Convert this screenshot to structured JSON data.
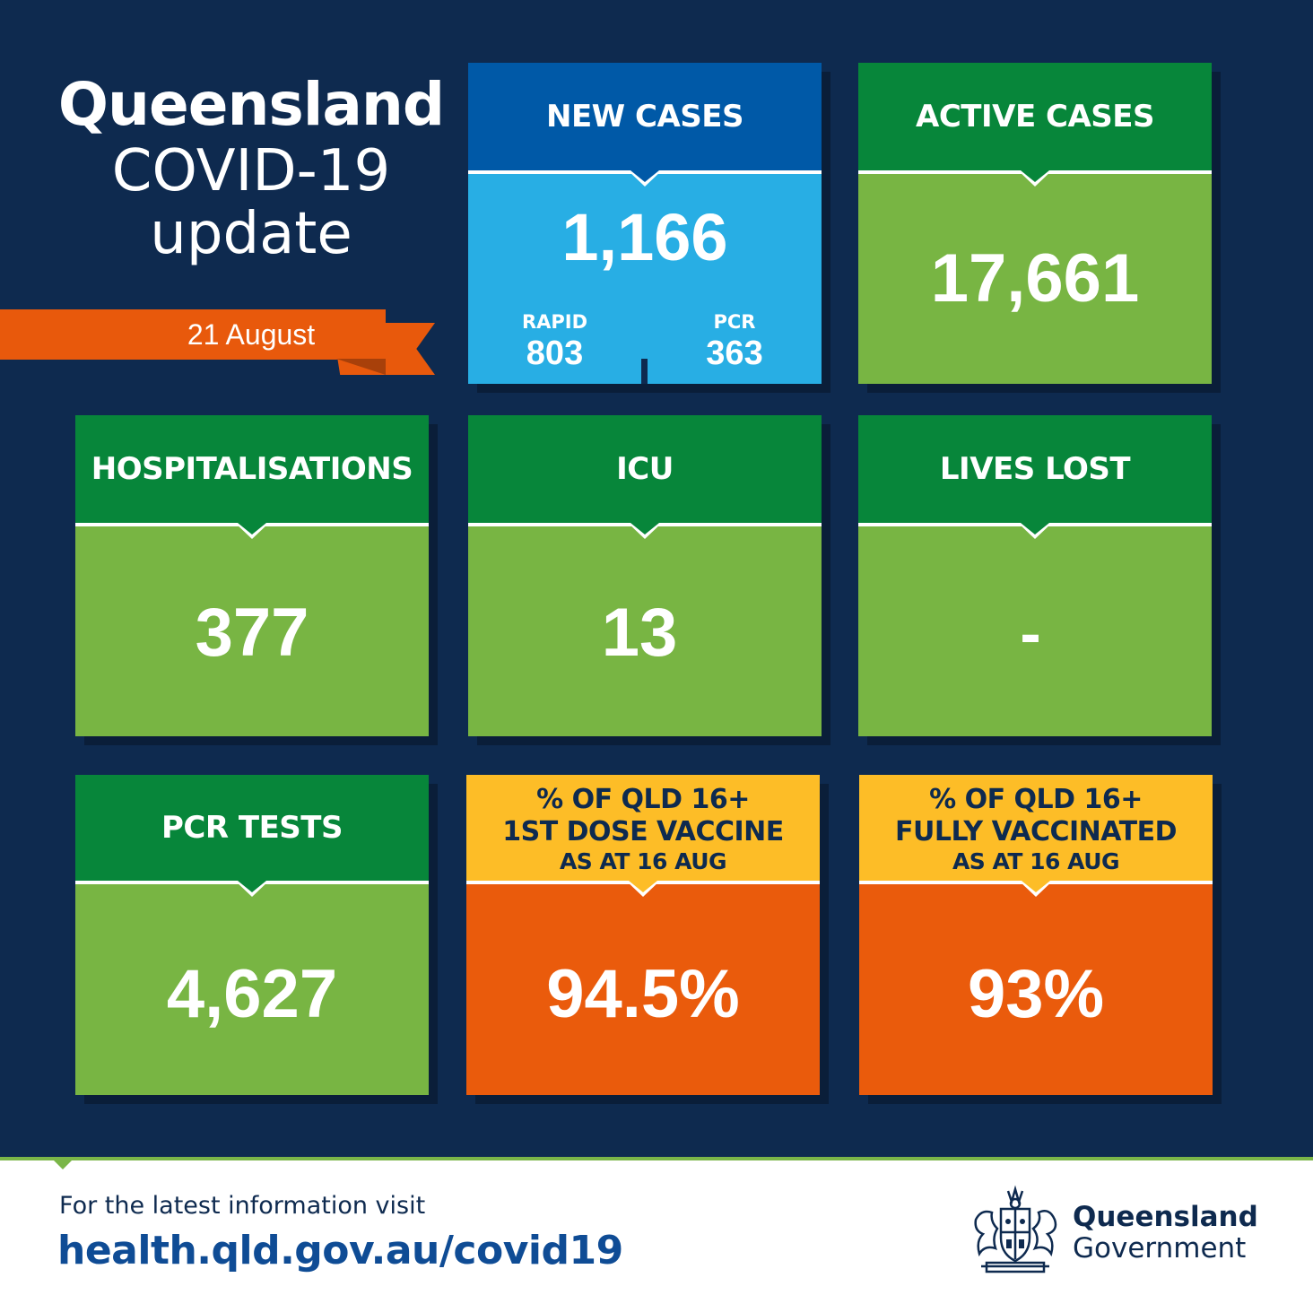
{
  "title": {
    "line1": "Queensland",
    "line2": "COVID-19",
    "line3": "update"
  },
  "date": "21 August",
  "tiles": {
    "new_cases": {
      "label": "NEW CASES",
      "value": "1,166",
      "rapid_label": "RAPID",
      "rapid_value": "803",
      "pcr_label": "PCR",
      "pcr_value": "363"
    },
    "active_cases": {
      "label": "ACTIVE CASES",
      "value": "17,661"
    },
    "hospitalisations": {
      "label": "HOSPITALISATIONS",
      "value": "377"
    },
    "icu": {
      "label": "ICU",
      "value": "13"
    },
    "lives_lost": {
      "label": "LIVES LOST",
      "value": "-"
    },
    "pcr_tests": {
      "label": "PCR TESTS",
      "value": "4,627"
    },
    "first_dose": {
      "label_line1": "% OF QLD 16+",
      "label_line2": "1ST DOSE VACCINE",
      "label_line3": "AS AT 16 AUG",
      "value": "94.5%"
    },
    "fully_vaccinated": {
      "label_line1": "% OF QLD 16+",
      "label_line2": "FULLY VACCINATED",
      "label_line3": "AS AT 16 AUG",
      "value": "93%"
    }
  },
  "footer": {
    "line1": "For the latest information visit",
    "link": "health.qld.gov.au/covid19",
    "logo_line1": "Queensland",
    "logo_line2": "Government",
    "crest_icon": "queensland-coat-of-arms-icon"
  },
  "colors": {
    "background": "#0e2a4f",
    "dark_green": "#07863a",
    "light_green": "#78b543",
    "dark_blue": "#0059a7",
    "light_blue": "#28aee4",
    "yellow": "#fdbd27",
    "orange": "#ea5b0c"
  }
}
